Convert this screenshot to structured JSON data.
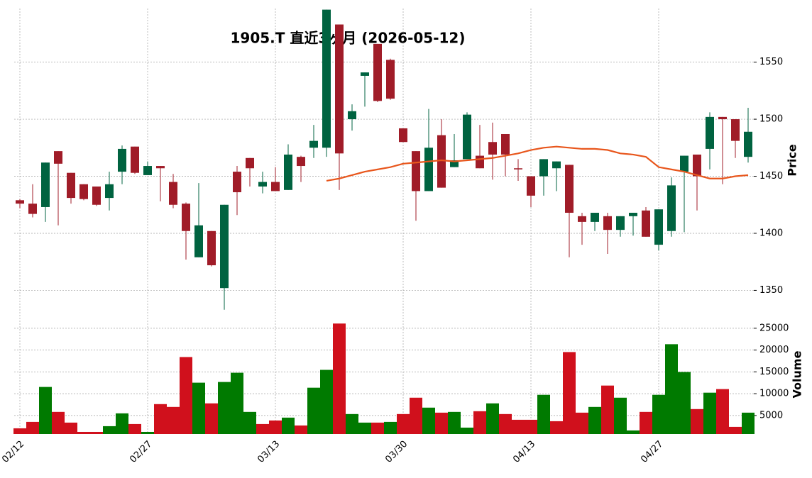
{
  "chart_data": {
    "type": "candlestick",
    "title": "1905.T 直近3ヶ月 (2026-05-12)",
    "categories": [
      "02/12",
      null,
      null,
      null,
      null,
      null,
      null,
      null,
      null,
      null,
      "02/27",
      null,
      null,
      null,
      null,
      null,
      null,
      null,
      null,
      null,
      "03/13",
      null,
      null,
      null,
      null,
      null,
      null,
      null,
      null,
      null,
      "03/30",
      null,
      null,
      null,
      null,
      null,
      null,
      null,
      null,
      null,
      "04/13",
      null,
      null,
      null,
      null,
      null,
      null,
      null,
      null,
      null,
      "04/27",
      null,
      null,
      null,
      null,
      null,
      null,
      null
    ],
    "open": [
      1429,
      1426,
      1423,
      1472,
      1453,
      1443,
      1441,
      1431,
      1454,
      1476,
      1451,
      1459,
      1445,
      1426,
      1379,
      1402,
      1352,
      1454,
      1466,
      1441,
      1445,
      1438,
      1467,
      1475,
      1475,
      1583,
      1500,
      1538,
      1566,
      1552,
      1492,
      1472,
      1437,
      1486,
      1458,
      1465,
      1468,
      1480,
      1487,
      1457,
      1450,
      1450,
      1457,
      1460,
      1415,
      1410,
      1415,
      1403,
      1415,
      1420,
      1390,
      1402,
      1454,
      1469,
      1474,
      1502,
      1500,
      1467
    ],
    "high": [
      1430,
      1443,
      1462,
      1472,
      1453,
      1443,
      1441,
      1454,
      1477,
      1476,
      1463,
      1459,
      1452,
      1427,
      1444,
      1402,
      1425,
      1459,
      1466,
      1454,
      1458,
      1478,
      1468,
      1495,
      1596,
      1583,
      1513,
      1541,
      1566,
      1553,
      1492,
      1472,
      1509,
      1500,
      1487,
      1506,
      1495,
      1497,
      1487,
      1465,
      1450,
      1465,
      1463,
      1460,
      1418,
      1418,
      1418,
      1415,
      1418,
      1423,
      1421,
      1449,
      1468,
      1469,
      1506,
      1502,
      1500,
      1510
    ],
    "low": [
      1422,
      1414,
      1410,
      1407,
      1426,
      1429,
      1424,
      1420,
      1443,
      1452,
      1451,
      1428,
      1422,
      1377,
      1379,
      1371,
      1333,
      1416,
      1441,
      1435,
      1437,
      1438,
      1445,
      1466,
      1467,
      1438,
      1490,
      1511,
      1515,
      1517,
      1480,
      1411,
      1437,
      1440,
      1458,
      1465,
      1457,
      1447,
      1450,
      1446,
      1423,
      1433,
      1437,
      1379,
      1390,
      1402,
      1382,
      1397,
      1398,
      1397,
      1385,
      1397,
      1401,
      1420,
      1456,
      1443,
      1466,
      1462
    ],
    "close": [
      1426,
      1417,
      1462,
      1461,
      1431,
      1430,
      1425,
      1443,
      1474,
      1453,
      1459,
      1457,
      1425,
      1402,
      1407,
      1372,
      1425,
      1436,
      1457,
      1445,
      1437,
      1469,
      1459,
      1481,
      1596,
      1470,
      1507,
      1541,
      1516,
      1518,
      1480,
      1437,
      1475,
      1440,
      1464,
      1504,
      1457,
      1469,
      1469,
      1456,
      1433,
      1465,
      1463,
      1418,
      1410,
      1418,
      1403,
      1415,
      1418,
      1397,
      1421,
      1442,
      1468,
      1450,
      1502,
      1500,
      1481,
      1489
    ],
    "volume": [
      2060,
      3530,
      11540,
      5820,
      3370,
      1240,
      1240,
      2550,
      5490,
      3040,
      1240,
      7610,
      6960,
      18400,
      12520,
      7780,
      12680,
      14800,
      5820,
      3040,
      3860,
      4510,
      2710,
      11370,
      15460,
      26080,
      5330,
      3370,
      3370,
      3530,
      5330,
      9080,
      6800,
      5650,
      5820,
      2220,
      5980,
      7780,
      5330,
      4020,
      4020,
      9740,
      3690,
      19540,
      5650,
      6960,
      11860,
      9080,
      1570,
      5820,
      9740,
      21340,
      14970,
      6470,
      10230,
      11050,
      2390,
      5650
    ],
    "moving_average": {
      "color": "#e8561c",
      "values": [
        null,
        null,
        null,
        null,
        null,
        null,
        null,
        null,
        null,
        null,
        null,
        null,
        null,
        null,
        null,
        null,
        null,
        null,
        null,
        null,
        null,
        null,
        null,
        null,
        1446,
        1448,
        1451,
        1454,
        1456,
        1458,
        1461,
        1462,
        1463,
        1464,
        1463,
        1464,
        1465,
        1466,
        1468,
        1470,
        1473,
        1475,
        1476,
        1475,
        1474,
        1474,
        1473,
        1470,
        1469,
        1467,
        1458,
        1456,
        1454,
        1451,
        1448,
        1448,
        1450,
        1451
      ]
    },
    "up_color": "#006340",
    "down_color": "#a01c28",
    "volume_up_color": "#007a00",
    "volume_down_color": "#d0101c",
    "ylabel": "Price",
    "ylim": [
      1331,
      1597
    ],
    "yticks": [
      1350,
      1400,
      1450,
      1500,
      1550
    ],
    "volume_ylabel": "Volume",
    "volume_ylim": [
      750,
      27900
    ],
    "volume_yticks": [
      5000,
      10000,
      15000,
      20000,
      25000
    ],
    "grid": true
  }
}
